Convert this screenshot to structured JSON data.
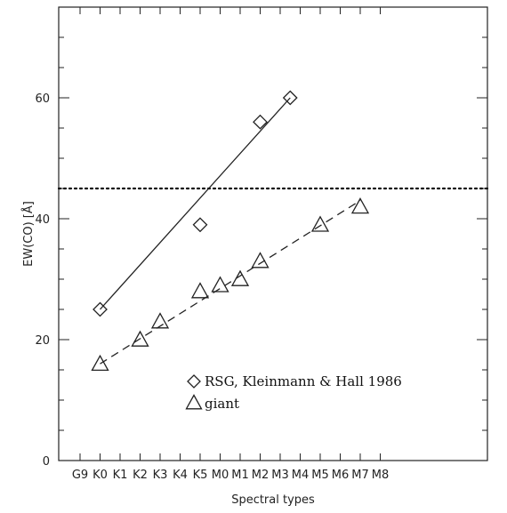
{
  "chart_data": {
    "type": "scatter",
    "title": "",
    "xlabel": "Spectral types",
    "ylabel": "EW(CO) [Å]",
    "categories": [
      "G9",
      "K0",
      "K1",
      "K2",
      "K3",
      "K4",
      "K5",
      "M0",
      "M1",
      "M2",
      "M3",
      "M4",
      "M5",
      "M6",
      "M7",
      "M8"
    ],
    "ylim": [
      0,
      75
    ],
    "yticks": [
      0,
      20,
      40,
      60
    ],
    "series": [
      {
        "name": "RSG, Kleinmann & Hall 1986",
        "marker": "diamond",
        "points": [
          {
            "x": "K0",
            "y": 25
          },
          {
            "x": "K5",
            "y": 39
          },
          {
            "x": "M2",
            "y": 56
          },
          {
            "x": "M3.5",
            "y": 60
          }
        ],
        "fit": {
          "style": "solid",
          "from": {
            "x": "K0",
            "y": 25
          },
          "to": {
            "x": "M3.5",
            "y": 60
          }
        }
      },
      {
        "name": "giant",
        "marker": "triangle",
        "points": [
          {
            "x": "K0",
            "y": 16
          },
          {
            "x": "K2",
            "y": 20
          },
          {
            "x": "K3",
            "y": 23
          },
          {
            "x": "K5",
            "y": 28
          },
          {
            "x": "M0",
            "y": 29
          },
          {
            "x": "M1",
            "y": 30
          },
          {
            "x": "M2",
            "y": 33
          },
          {
            "x": "M5",
            "y": 39
          },
          {
            "x": "M7",
            "y": 42
          }
        ],
        "fit": {
          "style": "dashed",
          "from": {
            "x": "K0",
            "y": 16
          },
          "to": {
            "x": "M7",
            "y": 43
          }
        }
      }
    ],
    "reference_lines": [
      {
        "axis": "y",
        "value": 45,
        "style": "dotted"
      }
    ],
    "legend": {
      "placement": "bottom-right"
    },
    "grid": false
  }
}
